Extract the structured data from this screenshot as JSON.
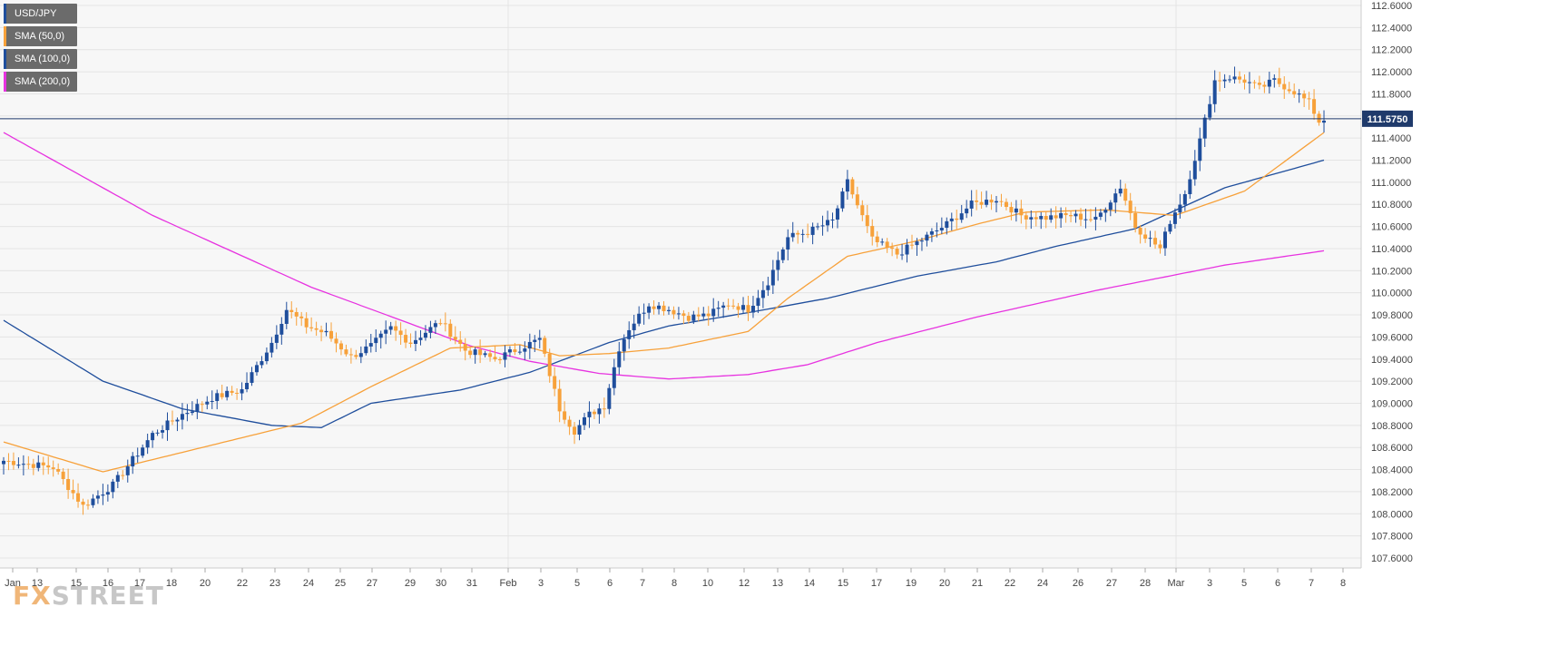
{
  "legend": [
    {
      "label": "USD/JPY",
      "color": "#1f4e9c"
    },
    {
      "label": "SMA (50,0)",
      "color": "#f7a13a"
    },
    {
      "label": "SMA (100,0)",
      "color": "#1f4e9c"
    },
    {
      "label": "SMA (200,0)",
      "color": "#e733e0"
    }
  ],
  "watermark": {
    "part1": "FX",
    "part2": "STREET"
  },
  "chart_data": {
    "type": "candlestick",
    "symbol": "USD/JPY",
    "last_price": "111.5750",
    "ylim": [
      107.5,
      112.6
    ],
    "y_ticks": [
      "112.6000",
      "112.4000",
      "112.2000",
      "112.0000",
      "111.8000",
      "111.6000",
      "111.4000",
      "111.2000",
      "111.0000",
      "110.8000",
      "110.6000",
      "110.4000",
      "110.2000",
      "110.0000",
      "109.8000",
      "109.6000",
      "109.4000",
      "109.2000",
      "109.0000",
      "108.8000",
      "108.6000",
      "108.4000",
      "108.2000",
      "108.0000",
      "107.8000",
      "107.6000"
    ],
    "x_ticks": [
      "Jan",
      "13",
      "15",
      "16",
      "17",
      "18",
      "20",
      "22",
      "23",
      "24",
      "25",
      "27",
      "29",
      "30",
      "31",
      "Feb",
      "3",
      "5",
      "6",
      "7",
      "8",
      "10",
      "12",
      "13",
      "14",
      "15",
      "17",
      "19",
      "20",
      "21",
      "22",
      "24",
      "26",
      "27",
      "28",
      "Mar",
      "3",
      "5",
      "6",
      "7",
      "8"
    ],
    "colors": {
      "up": "#1f4e9c",
      "down": "#f7a13a",
      "sma50": "#f7a13a",
      "sma100": "#1f4e9c",
      "sma200": "#e733e0",
      "price_line": "#1f3a6b",
      "grid": "#e4e4e4",
      "axis_text": "#444444"
    },
    "anchors": [
      [
        0,
        108.48
      ],
      [
        10,
        108.42
      ],
      [
        16,
        108.07
      ],
      [
        22,
        108.26
      ],
      [
        30,
        108.72
      ],
      [
        36,
        108.9
      ],
      [
        42,
        109.05
      ],
      [
        48,
        109.12
      ],
      [
        54,
        109.55
      ],
      [
        57,
        109.85
      ],
      [
        61,
        109.7
      ],
      [
        65,
        109.63
      ],
      [
        70,
        109.42
      ],
      [
        74,
        109.52
      ],
      [
        78,
        109.68
      ],
      [
        82,
        109.55
      ],
      [
        88,
        109.74
      ],
      [
        93,
        109.48
      ],
      [
        99,
        109.4
      ],
      [
        104,
        109.5
      ],
      [
        108,
        109.58
      ],
      [
        112,
        108.95
      ],
      [
        115,
        108.75
      ],
      [
        118,
        108.9
      ],
      [
        121,
        108.98
      ],
      [
        124,
        109.5
      ],
      [
        126,
        109.68
      ],
      [
        130,
        109.9
      ],
      [
        134,
        109.85
      ],
      [
        138,
        109.78
      ],
      [
        142,
        109.8
      ],
      [
        146,
        109.9
      ],
      [
        150,
        109.85
      ],
      [
        154,
        110.1
      ],
      [
        158,
        110.5
      ],
      [
        162,
        110.55
      ],
      [
        167,
        110.65
      ],
      [
        170,
        111.0
      ],
      [
        175,
        110.48
      ],
      [
        180,
        110.35
      ],
      [
        185,
        110.48
      ],
      [
        190,
        110.62
      ],
      [
        195,
        110.8
      ],
      [
        200,
        110.85
      ],
      [
        205,
        110.7
      ],
      [
        210,
        110.68
      ],
      [
        215,
        110.7
      ],
      [
        220,
        110.66
      ],
      [
        225,
        110.96
      ],
      [
        228,
        110.6
      ],
      [
        231,
        110.48
      ],
      [
        233,
        110.4
      ],
      [
        235,
        110.65
      ],
      [
        238,
        110.9
      ],
      [
        241,
        111.38
      ],
      [
        244,
        111.92
      ],
      [
        247,
        111.95
      ],
      [
        250,
        111.92
      ],
      [
        253,
        111.85
      ],
      [
        256,
        111.92
      ],
      [
        260,
        111.82
      ],
      [
        263,
        111.72
      ],
      [
        265,
        111.55
      ],
      [
        266,
        111.57
      ]
    ],
    "sma50": [
      [
        0,
        108.65
      ],
      [
        20,
        108.38
      ],
      [
        40,
        108.6
      ],
      [
        60,
        108.82
      ],
      [
        74,
        109.15
      ],
      [
        90,
        109.5
      ],
      [
        104,
        109.53
      ],
      [
        112,
        109.43
      ],
      [
        122,
        109.45
      ],
      [
        134,
        109.5
      ],
      [
        150,
        109.65
      ],
      [
        158,
        109.95
      ],
      [
        170,
        110.33
      ],
      [
        184,
        110.47
      ],
      [
        196,
        110.62
      ],
      [
        206,
        110.73
      ],
      [
        222,
        110.75
      ],
      [
        236,
        110.7
      ],
      [
        250,
        110.92
      ],
      [
        266,
        111.45
      ]
    ],
    "sma100": [
      [
        0,
        109.75
      ],
      [
        20,
        109.2
      ],
      [
        36,
        108.95
      ],
      [
        54,
        108.8
      ],
      [
        64,
        108.78
      ],
      [
        74,
        109.0
      ],
      [
        92,
        109.12
      ],
      [
        106,
        109.28
      ],
      [
        122,
        109.55
      ],
      [
        134,
        109.7
      ],
      [
        150,
        109.82
      ],
      [
        166,
        109.95
      ],
      [
        184,
        110.15
      ],
      [
        200,
        110.28
      ],
      [
        212,
        110.42
      ],
      [
        228,
        110.58
      ],
      [
        246,
        110.95
      ],
      [
        266,
        111.2
      ]
    ],
    "sma200": [
      [
        0,
        111.45
      ],
      [
        30,
        110.7
      ],
      [
        62,
        110.05
      ],
      [
        94,
        109.52
      ],
      [
        106,
        109.38
      ],
      [
        120,
        109.27
      ],
      [
        134,
        109.22
      ],
      [
        150,
        109.26
      ],
      [
        162,
        109.35
      ],
      [
        176,
        109.55
      ],
      [
        196,
        109.78
      ],
      [
        220,
        110.02
      ],
      [
        246,
        110.25
      ],
      [
        266,
        110.38
      ]
    ]
  }
}
